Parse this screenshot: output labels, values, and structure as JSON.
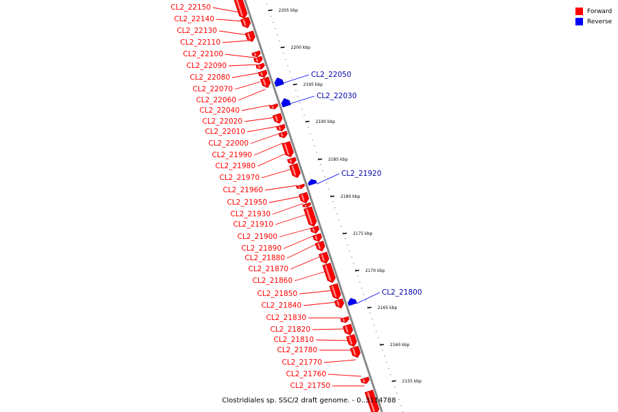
{
  "caption": "Clostridiales sp. SSC/2 draft genome. - 0..3114788",
  "legend": [
    {
      "label": "Forward",
      "color": "#ff0000"
    },
    {
      "label": "Reverse",
      "color": "#0000ff"
    }
  ],
  "colors": {
    "forward": "#ff0000",
    "reverse": "#0000ff",
    "axis": "#888888"
  },
  "ticks": [
    "2205 kbp",
    "2200 kbp",
    "2195 kbp",
    "2190 kbp",
    "2185 kbp",
    "2180 kbp",
    "2175 kbp",
    "2170 kbp",
    "2165 kbp",
    "2160 kbp",
    "2155 kbp"
  ],
  "forward_genes": [
    "CL2_22150",
    "CL2_22140",
    "CL2_22130",
    "CL2_22110",
    "CL2_22100",
    "CL2_22090",
    "CL2_22080",
    "CL2_22070",
    "CL2_22060",
    "CL2_22040",
    "CL2_22020",
    "CL2_22010",
    "CL2_22000",
    "CL2_21990",
    "CL2_21980",
    "CL2_21970",
    "CL2_21960",
    "CL2_21950",
    "CL2_21930",
    "CL2_21910",
    "CL2_21900",
    "CL2_21890",
    "CL2_21880",
    "CL2_21870",
    "CL2_21860",
    "CL2_21850",
    "CL2_21840",
    "CL2_21830",
    "CL2_21820",
    "CL2_21810",
    "CL2_21780",
    "CL2_21770",
    "CL2_21760",
    "CL2_21750"
  ],
  "reverse_genes": [
    "CL2_22050",
    "CL2_22030",
    "CL2_21920",
    "CL2_21800"
  ]
}
